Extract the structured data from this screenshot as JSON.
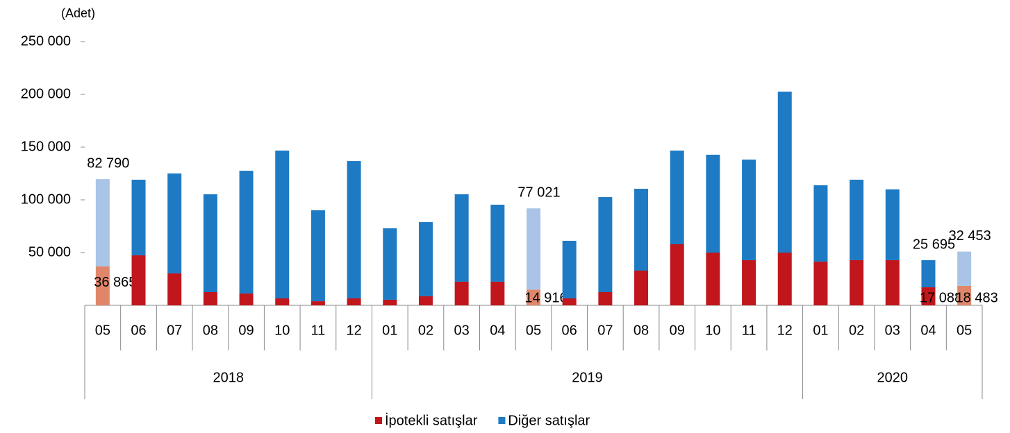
{
  "chart_data": {
    "type": "stacked_bar",
    "y_label": "(Adet)",
    "groups": [
      {
        "name": "2018",
        "categories": [
          "05",
          "06",
          "07",
          "08",
          "09",
          "10",
          "11",
          "12"
        ]
      },
      {
        "name": "2019",
        "categories": [
          "01",
          "02",
          "03",
          "04",
          "05",
          "06",
          "07",
          "08",
          "09",
          "10",
          "11",
          "12"
        ]
      },
      {
        "name": "2020",
        "categories": [
          "01",
          "02",
          "03",
          "04",
          "05"
        ]
      }
    ],
    "series": [
      {
        "name": "İpotekli satışlar",
        "color": "#c0161c",
        "colors": [
          "#e0876b",
          "#c0161c",
          "#c0161c",
          "#c0161c",
          "#c0161c",
          "#c0161c",
          "#c0161c",
          "#c0161c",
          "#c0161c",
          "#c0161c",
          "#c0161c",
          "#c0161c",
          "#e0876b",
          "#c0161c",
          "#c0161c",
          "#c0161c",
          "#c0161c",
          "#c0161c",
          "#c0161c",
          "#c0161c",
          "#c0161c",
          "#c0161c",
          "#c0161c",
          "#c0161c",
          "#e0876b"
        ],
        "values": [
          36865,
          47400,
          30300,
          12500,
          11200,
          6600,
          3900,
          6600,
          5300,
          8600,
          22400,
          22400,
          14916,
          6600,
          12500,
          32900,
          57900,
          50000,
          42800,
          50000,
          41400,
          42800,
          42800,
          17088,
          18483
        ],
        "value_labels": [
          "36 865",
          null,
          null,
          null,
          null,
          null,
          null,
          null,
          null,
          null,
          null,
          null,
          "14 916",
          null,
          null,
          null,
          null,
          null,
          null,
          null,
          null,
          null,
          null,
          "17 088",
          "18 483"
        ]
      },
      {
        "name": "Diğer satışlar",
        "color": "#1f7ac4",
        "colors": [
          "#a9c4e6",
          "#1f7ac4",
          "#1f7ac4",
          "#1f7ac4",
          "#1f7ac4",
          "#1f7ac4",
          "#1f7ac4",
          "#1f7ac4",
          "#1f7ac4",
          "#1f7ac4",
          "#1f7ac4",
          "#1f7ac4",
          "#a9c4e6",
          "#1f7ac4",
          "#1f7ac4",
          "#1f7ac4",
          "#1f7ac4",
          "#1f7ac4",
          "#1f7ac4",
          "#1f7ac4",
          "#1f7ac4",
          "#1f7ac4",
          "#1f7ac4",
          "#1f7ac4",
          "#a9c4e6"
        ],
        "values": [
          82790,
          71700,
          94700,
          92800,
          116400,
          140100,
          86200,
          130200,
          67700,
          70300,
          82900,
          73000,
          77021,
          54600,
          90100,
          77600,
          88800,
          92800,
          95400,
          152600,
          72400,
          76300,
          67100,
          25695,
          32453
        ],
        "value_labels": [
          "82 790",
          null,
          null,
          null,
          null,
          null,
          null,
          null,
          null,
          null,
          null,
          null,
          "77 021",
          null,
          null,
          null,
          null,
          null,
          null,
          null,
          null,
          null,
          null,
          "25 695",
          "32 453"
        ]
      }
    ],
    "ylim": [
      0,
      250000
    ],
    "yticks": [
      {
        "value": 50000,
        "label": "50 000"
      },
      {
        "value": 100000,
        "label": "100 000"
      },
      {
        "value": 150000,
        "label": "150 000"
      },
      {
        "value": 200000,
        "label": "200 000"
      },
      {
        "value": 250000,
        "label": "250 000"
      }
    ],
    "legend": "bottom"
  }
}
